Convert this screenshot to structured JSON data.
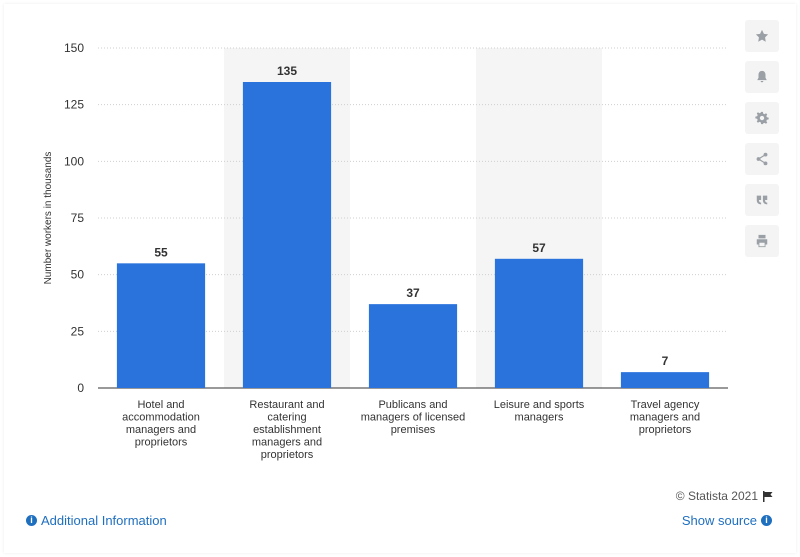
{
  "chart_data": {
    "type": "bar",
    "categories": [
      "Hotel and accommodation managers and proprietors",
      "Restaurant and catering establishment managers and proprietors",
      "Publicans and managers of licensed premises",
      "Leisure and sports managers",
      "Travel agency managers and proprietors"
    ],
    "category_lines": [
      [
        "Hotel and",
        "accommodation",
        "managers and",
        "proprietors"
      ],
      [
        "Restaurant and",
        "catering",
        "establishment",
        "managers and",
        "proprietors"
      ],
      [
        "Publicans and",
        "managers of licensed",
        "premises"
      ],
      [
        "Leisure and sports",
        "managers"
      ],
      [
        "Travel agency",
        "managers and",
        "proprietors"
      ]
    ],
    "values": [
      55,
      135,
      37,
      57,
      7
    ],
    "ylabel": "Number workers in thousands",
    "ylim": [
      0,
      150
    ],
    "yticks": [
      0,
      25,
      50,
      75,
      100,
      125,
      150
    ],
    "grid": true,
    "bar_color": "#2a73dd",
    "band_color": "#f5f5f5"
  },
  "footer": {
    "credit": "© Statista 2021",
    "additional_info": "Additional Information",
    "show_source": "Show source"
  },
  "sidebar_icons": [
    "star-icon",
    "bell-icon",
    "gear-icon",
    "share-icon",
    "quote-icon",
    "print-icon"
  ]
}
